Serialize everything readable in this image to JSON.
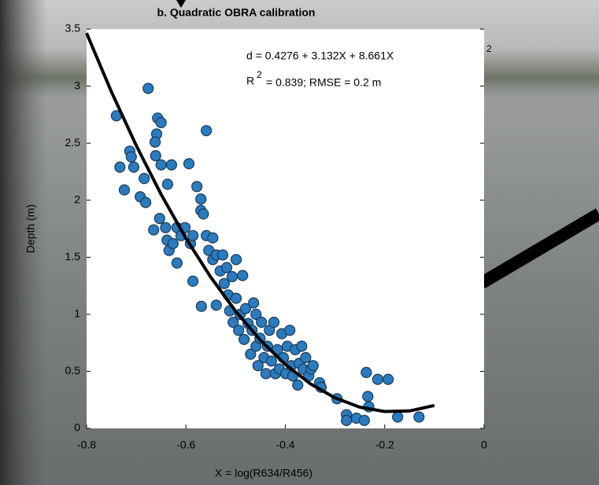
{
  "chart_data": {
    "type": "scatter",
    "title": "b. Quadratic OBRA calibration",
    "x_label": "X = log(R634/R456)",
    "y_label": "Depth (m)",
    "annotations": [
      "d = 0.4276 + 3.132X + 8.661X",
      "2",
      "R",
      "2",
      "= 0.839; RMSE = 0.2 m"
    ],
    "xlim": [
      -0.8,
      0
    ],
    "ylim": [
      0,
      3.5
    ],
    "xticks": [
      -0.8,
      -0.6,
      -0.4,
      -0.2,
      0
    ],
    "yticks": [
      0,
      0.5,
      1,
      1.5,
      2,
      2.5,
      3,
      3.5
    ],
    "series": [
      {
        "type": "scatter",
        "color": "#2b7bbf",
        "x": [
          -0.74,
          -0.676,
          -0.733,
          -0.724,
          -0.713,
          -0.71,
          -0.705,
          -0.692,
          -0.684,
          -0.681,
          -0.665,
          -0.659,
          -0.657,
          -0.65,
          -0.662,
          -0.661,
          -0.65,
          -0.637,
          -0.629,
          -0.594,
          -0.559,
          -0.653,
          -0.641,
          -0.638,
          -0.634,
          -0.626,
          -0.618,
          -0.618,
          -0.61,
          -0.602,
          -0.591,
          -0.586,
          -0.586,
          -0.578,
          -0.57,
          -0.57,
          -0.565,
          -0.569,
          -0.559,
          -0.554,
          -0.546,
          -0.546,
          -0.539,
          -0.539,
          -0.531,
          -0.526,
          -0.523,
          -0.518,
          -0.515,
          -0.512,
          -0.507,
          -0.505,
          -0.499,
          -0.499,
          -0.494,
          -0.491,
          -0.486,
          -0.483,
          -0.48,
          -0.475,
          -0.47,
          -0.467,
          -0.464,
          -0.459,
          -0.459,
          -0.455,
          -0.451,
          -0.448,
          -0.443,
          -0.439,
          -0.436,
          -0.432,
          -0.428,
          -0.423,
          -0.42,
          -0.416,
          -0.412,
          -0.407,
          -0.404,
          -0.399,
          -0.396,
          -0.391,
          -0.388,
          -0.385,
          -0.38,
          -0.375,
          -0.372,
          -0.367,
          -0.364,
          -0.359,
          -0.353,
          -0.348,
          -0.344,
          -0.331,
          -0.328,
          -0.296,
          -0.277,
          -0.277,
          -0.257,
          -0.241,
          -0.237,
          -0.234,
          -0.232,
          -0.214,
          -0.193,
          -0.174,
          -0.131
        ],
        "values": [
          2.74,
          2.98,
          2.29,
          2.09,
          2.43,
          2.38,
          2.29,
          2.03,
          2.19,
          1.98,
          1.74,
          2.58,
          2.72,
          2.68,
          2.51,
          2.39,
          2.31,
          2.14,
          2.31,
          2.32,
          2.61,
          1.84,
          1.76,
          1.65,
          1.56,
          1.62,
          1.45,
          1.76,
          1.69,
          1.76,
          1.62,
          1.29,
          1.69,
          2.12,
          2.01,
          1.91,
          1.88,
          1.07,
          1.69,
          1.56,
          1.67,
          1.48,
          1.52,
          1.08,
          1.38,
          1.52,
          1.27,
          1.41,
          1.17,
          1.03,
          1.33,
          0.93,
          1.48,
          1.14,
          0.86,
          1.0,
          1.34,
          0.78,
          1.05,
          0.92,
          0.65,
          0.86,
          1.1,
          0.72,
          1.0,
          0.55,
          0.79,
          0.93,
          0.62,
          0.48,
          0.72,
          0.86,
          0.59,
          0.93,
          0.48,
          0.69,
          0.52,
          0.83,
          0.62,
          0.48,
          0.72,
          0.86,
          0.55,
          0.46,
          0.69,
          0.38,
          0.57,
          0.72,
          0.52,
          0.62,
          0.46,
          0.52,
          0.55,
          0.4,
          0.36,
          0.26,
          0.12,
          0.07,
          0.09,
          0.07,
          0.49,
          0.28,
          0.19,
          0.43,
          0.43,
          0.1,
          0.1
        ]
      },
      {
        "type": "line",
        "color": "#000000",
        "x": [
          -0.8,
          -0.75,
          -0.7,
          -0.65,
          -0.6,
          -0.55,
          -0.5,
          -0.45,
          -0.4,
          -0.35,
          -0.3,
          -0.25,
          -0.2,
          -0.15,
          -0.1
        ],
        "values": [
          3.465,
          2.95,
          2.479,
          2.051,
          1.666,
          1.325,
          1.027,
          0.772,
          0.561,
          0.392,
          0.268,
          0.186,
          0.148,
          0.153,
          0.201
        ]
      }
    ]
  }
}
